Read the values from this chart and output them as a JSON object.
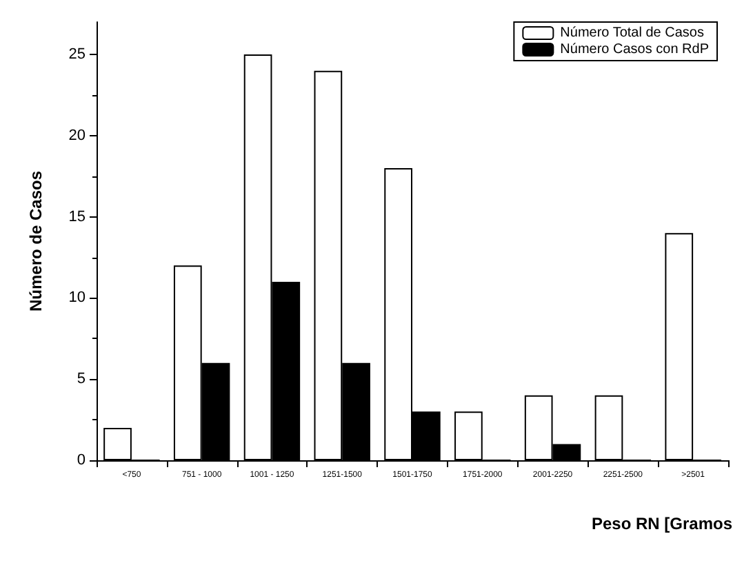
{
  "chart_data": {
    "type": "bar",
    "xlabel": "Peso RN [Gramos",
    "ylabel": "Número de Casos",
    "categories": [
      "<750",
      "751 - 1000",
      "1001 - 1250",
      "1251-1500",
      "1501-1750",
      "1751-2000",
      "2001-2250",
      "2251-2500",
      ">2501"
    ],
    "series": [
      {
        "name": "Número Total de Casos",
        "color": "#ffffff",
        "values": [
          2,
          12,
          25,
          24,
          18,
          3,
          4,
          4,
          14
        ]
      },
      {
        "name": "Número Casos con RdP",
        "color": "#000000",
        "values": [
          0,
          6,
          11,
          6,
          3,
          0,
          1,
          0,
          0
        ]
      }
    ],
    "ylim": [
      0,
      27
    ],
    "yticks": [
      0,
      5,
      10,
      15,
      20,
      25
    ],
    "grid": false,
    "legend": "top right"
  }
}
